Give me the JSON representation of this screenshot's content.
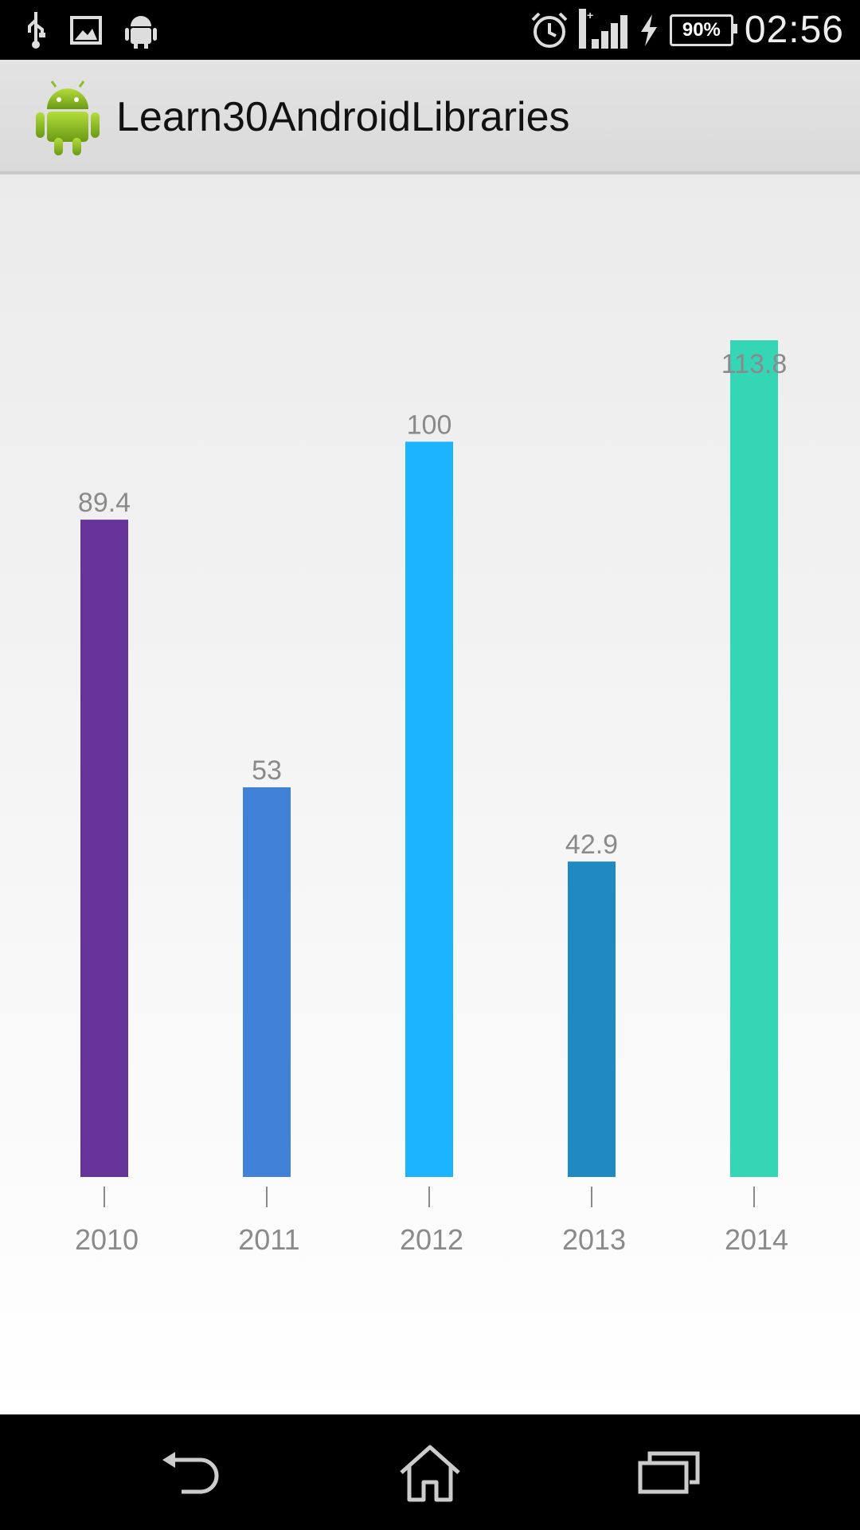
{
  "status_bar": {
    "time": "02:56",
    "battery": "90%",
    "network": "H+",
    "left_icons": [
      "usb-icon",
      "image-icon",
      "android-debug-icon"
    ],
    "right_icons": [
      "alarm-icon",
      "signal-icon",
      "charging-icon",
      "battery-icon"
    ]
  },
  "action_bar": {
    "title": "Learn30AndroidLibraries",
    "icon": "android-robot-icon"
  },
  "nav_bar": {
    "icons": [
      "back-icon",
      "home-icon",
      "recent-apps-icon"
    ]
  },
  "chart_data": {
    "type": "bar",
    "categories": [
      "2010",
      "2011",
      "2012",
      "2013",
      "2014"
    ],
    "values": [
      89.4,
      53,
      100,
      42.9,
      113.8
    ],
    "value_labels": [
      "89.4",
      "53",
      "100",
      "42.9",
      "113.8"
    ],
    "colors": [
      "#663399",
      "#4182d8",
      "#1cb4fc",
      "#1f89c2",
      "#35d6b6"
    ],
    "title": "",
    "xlabel": "",
    "ylabel": "",
    "ylim": [
      0,
      113.8
    ],
    "grid": false,
    "legend": "none"
  }
}
